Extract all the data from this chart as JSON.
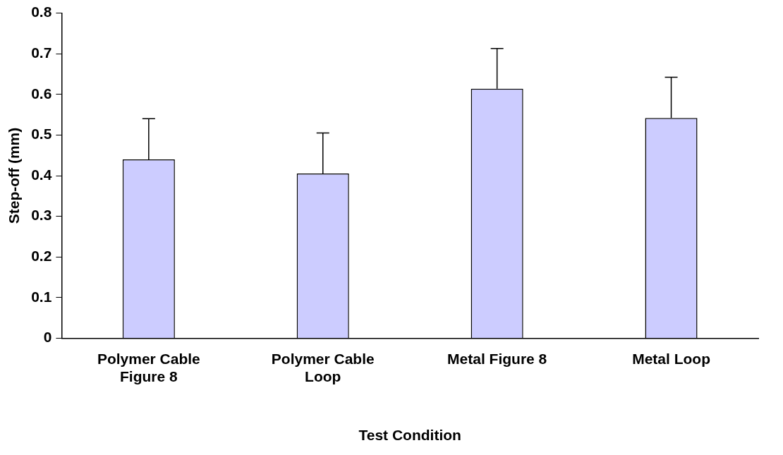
{
  "chart_data": {
    "type": "bar",
    "xlabel": "Test Condition",
    "ylabel": "Step-off (mm)",
    "categories": [
      "Polymer Cable Figure 8",
      "Polymer Cable Loop",
      "Metal Figure 8",
      "Metal Loop"
    ],
    "values": [
      0.44,
      0.405,
      0.614,
      0.542
    ],
    "errors": [
      [
        0.44,
        0.54
      ],
      [
        0.405,
        0.505
      ],
      [
        0.614,
        0.713
      ],
      [
        0.542,
        0.642
      ]
    ],
    "color": "#ccccff",
    "ylim": [
      0,
      0.8
    ],
    "yticks": [
      {
        "value": 0,
        "label": "0"
      },
      0.1,
      0.2,
      0.3,
      0.4,
      0.5,
      0.6,
      0.7,
      0.8
    ],
    "grid": false,
    "legend": false
  }
}
